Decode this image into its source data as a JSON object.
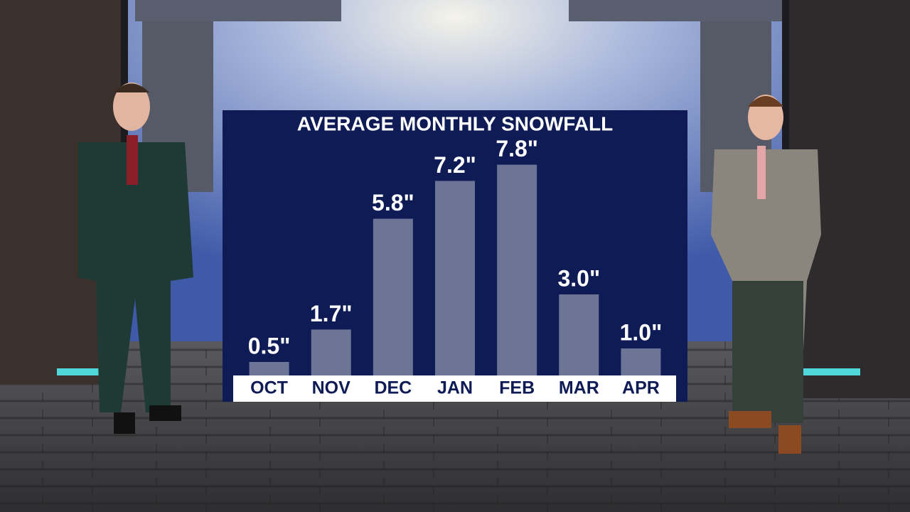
{
  "chart_data": {
    "type": "bar",
    "title": "AVERAGE MONTHLY SNOWFALL",
    "categories": [
      "OCT",
      "NOV",
      "DEC",
      "JAN",
      "FEB",
      "MAR",
      "APR"
    ],
    "values": [
      0.5,
      1.7,
      5.8,
      7.2,
      7.8,
      3.0,
      1.0
    ],
    "value_labels": [
      "0.5\"",
      "1.7\"",
      "5.8\"",
      "7.2\"",
      "7.8\"",
      "3.0\"",
      "1.0\""
    ],
    "color": "#6d7597"
  }
}
